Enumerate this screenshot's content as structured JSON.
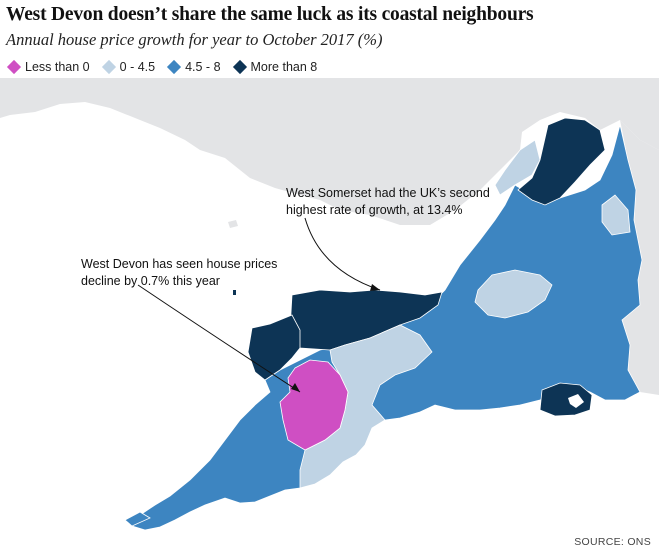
{
  "title": "West Devon doesn’t share the same luck as its coastal neighbours",
  "subtitle": "Annual house price growth for year to October 2017 (%)",
  "legend": [
    {
      "label": "Less than 0",
      "color": "#cf4fc3"
    },
    {
      "label": "0 - 4.5",
      "color": "#bfd3e4"
    },
    {
      "label": "4.5 - 8",
      "color": "#3d85c1"
    },
    {
      "label": "More than 8",
      "color": "#0d3455"
    }
  ],
  "annotations": {
    "west_somerset_line1": "West Somerset had the UK’s second",
    "west_somerset_line2": "highest rate of growth, at 13.4%",
    "west_devon_line1": "West Devon has seen house prices",
    "west_devon_line2": "decline by 0.7% this year"
  },
  "source": "SOURCE: ONS"
}
